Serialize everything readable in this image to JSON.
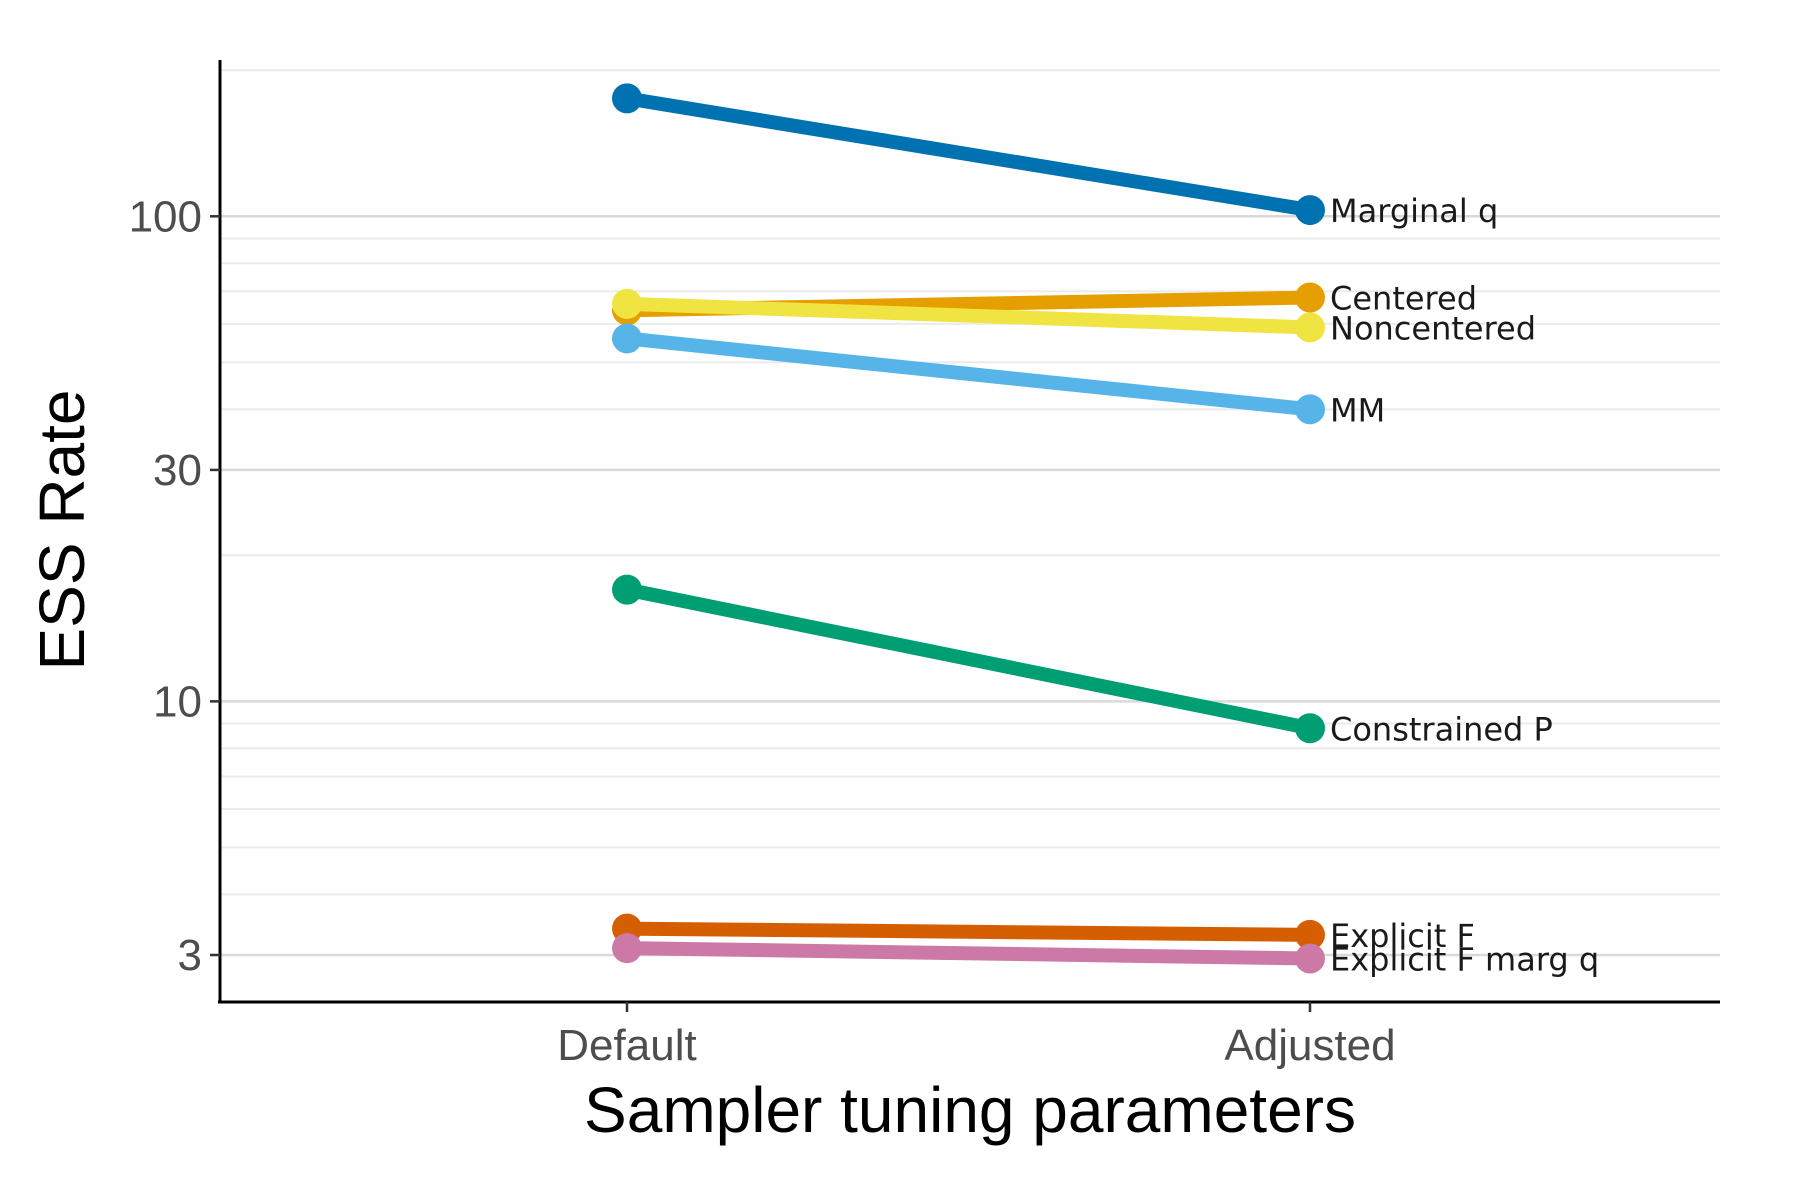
{
  "chart_data": {
    "type": "line",
    "title": "",
    "xlabel": "Sampler tuning parameters",
    "ylabel": "ESS Rate",
    "x": [
      "Default",
      "Adjusted"
    ],
    "y_scale": "log",
    "ylim": [
      2.4,
      210
    ],
    "y_ticks": [
      3,
      10,
      30,
      100
    ],
    "y_tick_labels": [
      "3",
      "10",
      "30",
      "100"
    ],
    "grid": "horizontal",
    "legend": "direct labels at line ends",
    "series": [
      {
        "name": "Marginal q",
        "values": [
          175,
          103
        ],
        "color": "#0072B2"
      },
      {
        "name": "Centered",
        "values": [
          64,
          68
        ],
        "color": "#E69F00"
      },
      {
        "name": "Noncentered",
        "values": [
          66,
          59
        ],
        "color": "#F0E442"
      },
      {
        "name": "MM",
        "values": [
          56,
          40
        ],
        "color": "#56B4E9"
      },
      {
        "name": "Constrained P",
        "values": [
          17,
          8.8
        ],
        "color": "#009E73"
      },
      {
        "name": "Explicit F",
        "values": [
          3.4,
          3.3
        ],
        "color": "#D55E00"
      },
      {
        "name": "Explicit F marg q",
        "values": [
          3.1,
          2.95
        ],
        "color": "#CC79A7"
      }
    ]
  }
}
